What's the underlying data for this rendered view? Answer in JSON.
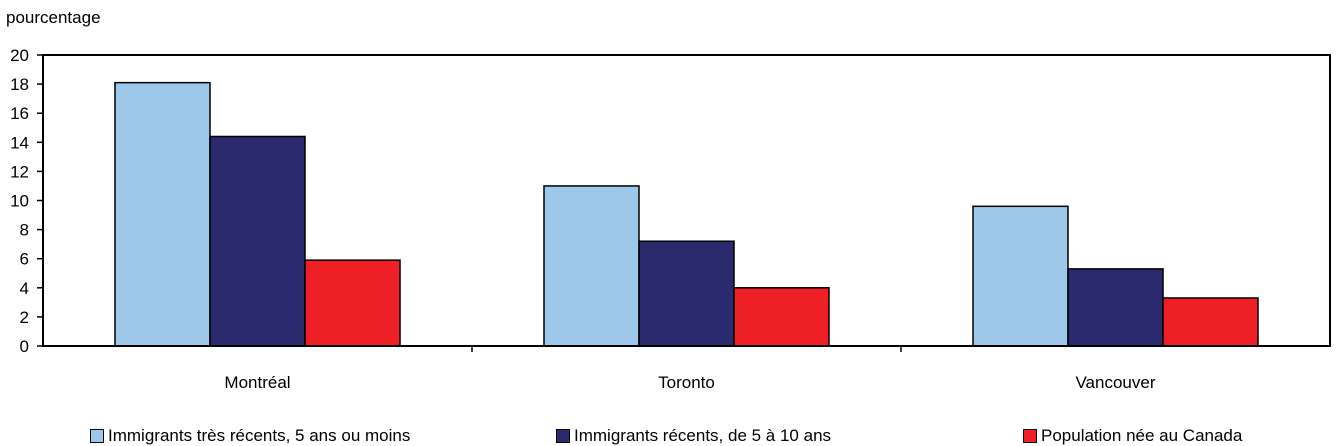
{
  "chart_data": {
    "type": "bar",
    "ylabel": "pourcentage",
    "xlabel": "",
    "title": "",
    "ylim": [
      0,
      20
    ],
    "yticks": [
      0,
      2,
      4,
      6,
      8,
      10,
      12,
      14,
      16,
      18,
      20
    ],
    "grid": false,
    "legend_position": "bottom",
    "categories": [
      "Montréal",
      "Toronto",
      "Vancouver"
    ],
    "series": [
      {
        "name": "Immigrants très récents, 5 ans ou moins",
        "color": "#9dc8ea",
        "values": [
          18.1,
          11.0,
          9.6
        ]
      },
      {
        "name": "Immigrants récents, de 5 à 10 ans",
        "color": "#2b2a6e",
        "values": [
          14.4,
          7.2,
          5.3
        ]
      },
      {
        "name": "Population née au Canada",
        "color": "#ee2026",
        "values": [
          5.9,
          4.0,
          3.3
        ]
      }
    ]
  }
}
